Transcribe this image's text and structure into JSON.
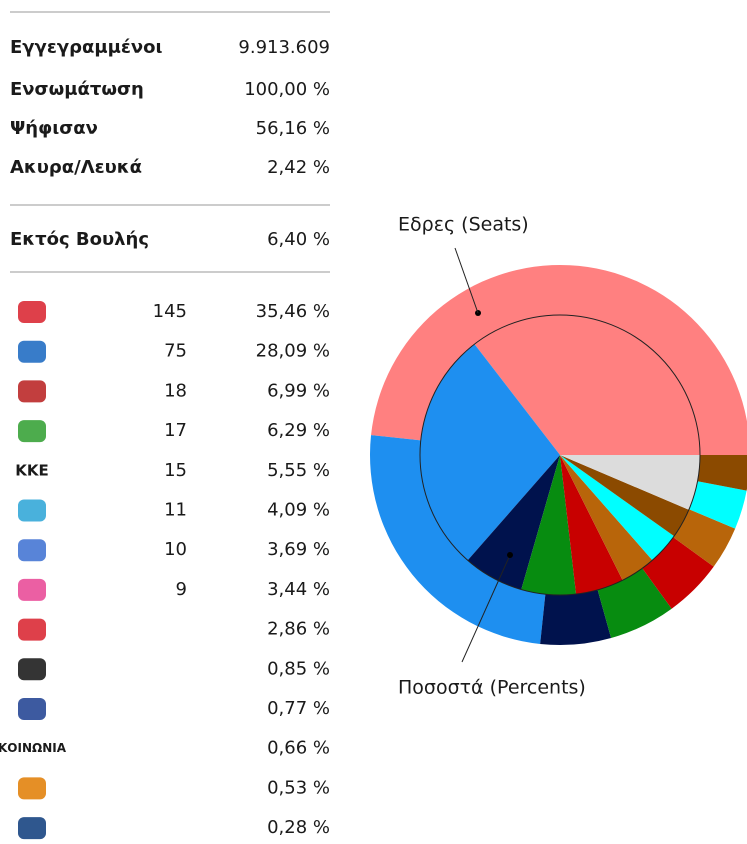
{
  "stats": [
    {
      "label": "Εγγεγραμμένοι",
      "value": "9.913.609"
    },
    {
      "label": "Ενσωμάτωση",
      "value": "100,00 %"
    },
    {
      "label": "Ψήφισαν",
      "value": "56,16 %"
    },
    {
      "label": "Ακυρα/Λευκά",
      "value": "2,42 %"
    }
  ],
  "outside": {
    "label": "Εκτός Βουλής",
    "value": "6,40 %"
  },
  "parties": [
    {
      "seats": "145",
      "percent": "35,46 %"
    },
    {
      "seats": "75",
      "percent": "28,09 %"
    },
    {
      "seats": "18",
      "percent": "6,99 %"
    },
    {
      "seats": "17",
      "percent": "6,29 %"
    },
    {
      "logo": "ΚΚΕ",
      "seats": "15",
      "percent": "5,55 %"
    },
    {
      "seats": "11",
      "percent": "4,09 %"
    },
    {
      "seats": "10",
      "percent": "3,69 %"
    },
    {
      "seats": "9",
      "percent": "3,44 %"
    },
    {
      "percent": "2,86 %"
    },
    {
      "percent": "0,85 %"
    },
    {
      "percent": "0,77 %"
    },
    {
      "logo": "ΚΟΙΝΩΝΙΑ",
      "percent": "0,66 %"
    },
    {
      "percent": "0,53 %"
    },
    {
      "percent": "0,28 %"
    }
  ],
  "chart_data": {
    "type": "pie",
    "series": [
      {
        "name": "Εδρες (Seats)",
        "values": [
          145,
          75,
          18,
          17,
          15,
          11,
          10,
          9
        ]
      },
      {
        "name": "Ποσοστά (Percents)",
        "values": [
          35.46,
          28.09,
          6.99,
          6.29,
          5.55,
          4.09,
          3.69,
          3.44,
          6.4
        ]
      }
    ],
    "colors": [
      "#ff8080",
      "#1e8ff0",
      "#00124d",
      "#078c10",
      "#c80000",
      "#b8650a",
      "#00ffff",
      "#8b4a00",
      "#dcdcdc"
    ]
  }
}
